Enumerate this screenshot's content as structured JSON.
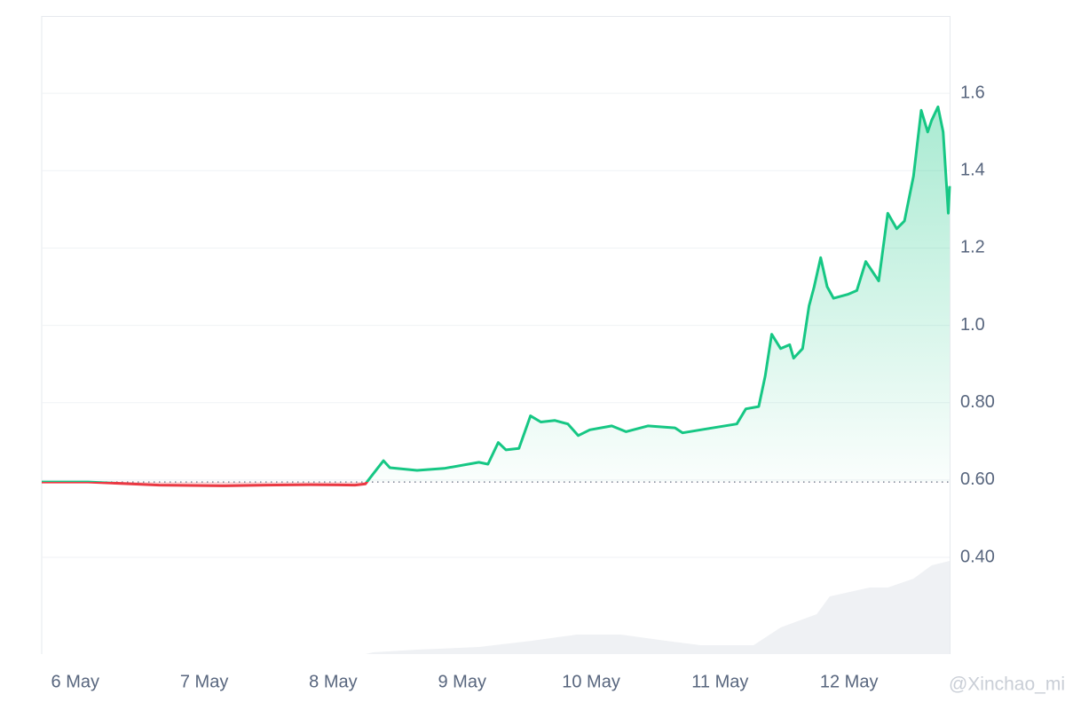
{
  "chart_data": {
    "type": "line",
    "x": [
      5.74,
      6.1,
      6.65,
      7.14,
      7.48,
      7.82,
      8.17,
      8.25,
      8.31,
      8.39,
      8.44,
      8.65,
      8.86,
      9.13,
      9.2,
      9.28,
      9.34,
      9.44,
      9.53,
      9.61,
      9.72,
      9.82,
      9.9,
      9.99,
      10.16,
      10.27,
      10.44,
      10.65,
      10.71,
      10.85,
      11.13,
      11.2,
      11.3,
      11.35,
      11.4,
      11.47,
      11.54,
      11.57,
      11.64,
      11.69,
      11.73,
      11.78,
      11.83,
      11.88,
      11.99,
      12.06,
      12.13,
      12.23,
      12.3,
      12.37,
      12.43,
      12.5,
      12.56,
      12.61,
      12.64,
      12.69,
      12.73,
      12.77,
      12.78
    ],
    "series": [
      {
        "values": [
          0.595,
          0.595,
          0.587,
          0.585,
          0.587,
          0.588,
          0.587,
          0.59,
          0.616,
          0.65,
          0.632,
          0.625,
          0.63,
          0.646,
          0.641,
          0.697,
          0.678,
          0.682,
          0.766,
          0.75,
          0.754,
          0.745,
          0.715,
          0.73,
          0.74,
          0.725,
          0.74,
          0.735,
          0.722,
          0.73,
          0.745,
          0.784,
          0.79,
          0.869,
          0.977,
          0.94,
          0.95,
          0.915,
          0.94,
          1.05,
          1.1,
          1.175,
          1.1,
          1.07,
          1.08,
          1.09,
          1.165,
          1.115,
          1.29,
          1.25,
          1.27,
          1.386,
          1.556,
          1.5,
          1.53,
          1.565,
          1.5,
          1.29,
          1.36
        ]
      }
    ],
    "volume": {
      "axis": "y2",
      "color": "#eff1f4",
      "x": [
        5.74,
        8.25,
        8.31,
        8.65,
        9.13,
        9.54,
        9.89,
        10.23,
        10.58,
        10.85,
        11.26,
        11.47,
        11.75,
        11.85,
        12.16,
        12.3,
        12.5,
        12.64,
        12.78
      ],
      "values": [
        0,
        0,
        2,
        5,
        8,
        15,
        22,
        22,
        15,
        10,
        10,
        30,
        45,
        65,
        75,
        75,
        85,
        100,
        105
      ]
    },
    "y2lim": [
      0,
      719
    ],
    "baseline": 0.595,
    "up_color": "#16c784",
    "down_color": "#ea3943",
    "xlim": [
      5.74,
      12.78
    ],
    "xticks": [
      {
        "value": 6,
        "label": "6 May"
      },
      {
        "value": 7,
        "label": "7 May"
      },
      {
        "value": 8,
        "label": "8 May"
      },
      {
        "value": 9,
        "label": "9 May"
      },
      {
        "value": 10,
        "label": "10 May"
      },
      {
        "value": 11,
        "label": "11 May"
      },
      {
        "value": 12,
        "label": "12 May"
      }
    ],
    "ylim": [
      0.15,
      1.8
    ],
    "yticks": [
      {
        "value": 0.4,
        "label": "0.40"
      },
      {
        "value": 0.6,
        "label": "0.60"
      },
      {
        "value": 0.8,
        "label": "0.80"
      },
      {
        "value": 1,
        "label": "1.0"
      },
      1.2,
      1.4,
      1.6
    ],
    "grid": true,
    "annotation": "@Xinchao_mi"
  }
}
